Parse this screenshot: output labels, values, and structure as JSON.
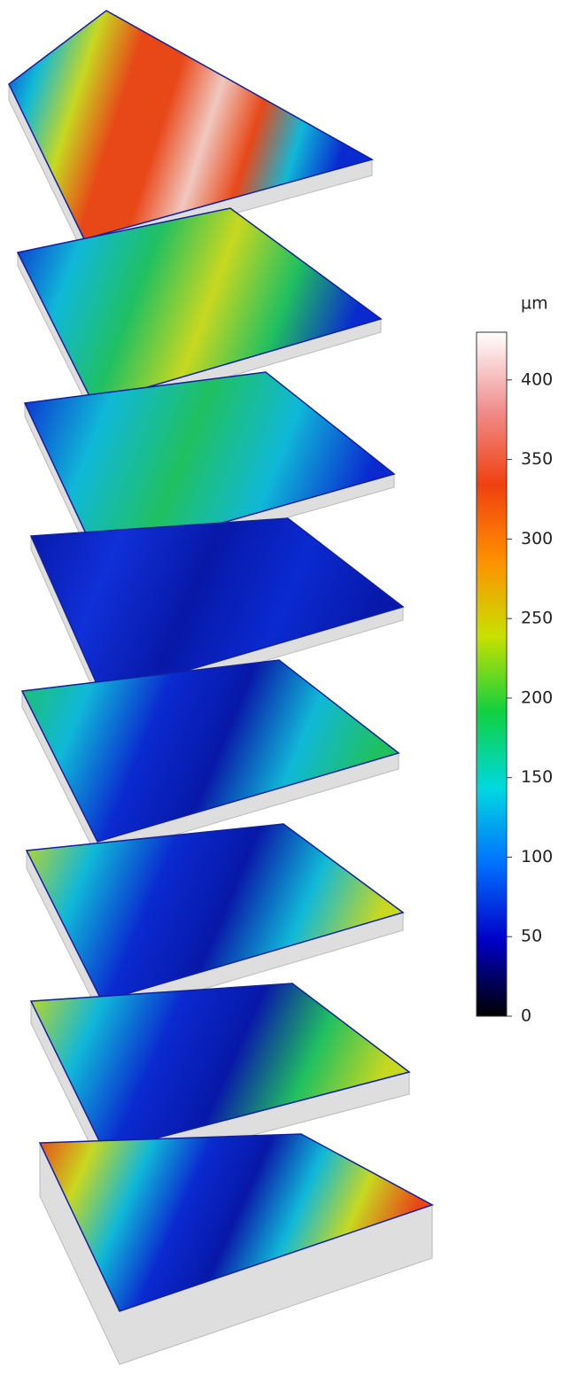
{
  "colorbar": {
    "unit": "µm",
    "lim": [
      0,
      430
    ],
    "ticks": [
      0,
      50,
      100,
      150,
      200,
      250,
      300,
      350,
      400
    ],
    "colormap": [
      "#000000",
      "#0000c8",
      "#0070ff",
      "#00d8e0",
      "#10d040",
      "#c8e000",
      "#ff9000",
      "#f04010",
      "#f09090",
      "#ffffff"
    ]
  }
}
